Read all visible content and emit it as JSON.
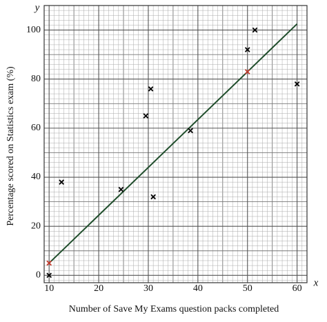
{
  "chart_data": {
    "type": "scatter",
    "x_label": "Number of Save My Exams question packs completed",
    "y_label": "Percentage scored on Statistics exam (%)",
    "x_symbol": "x",
    "y_symbol": "y",
    "xlim": [
      9,
      62
    ],
    "ylim": [
      -3,
      110
    ],
    "xticks": [
      10,
      20,
      30,
      40,
      50,
      60
    ],
    "yticks": [
      0,
      20,
      40,
      60,
      80,
      100
    ],
    "grid": true,
    "series": [
      {
        "type": "scatter",
        "color": "#000000",
        "x": [
          10,
          12.5,
          24.5,
          29.5,
          30.5,
          31,
          38.5,
          50,
          51.5,
          60
        ],
        "values": [
          0,
          38,
          35,
          65,
          76,
          32,
          59,
          92,
          100,
          78
        ]
      },
      {
        "type": "scatter",
        "color": "#c0392b",
        "x": [
          10,
          50
        ],
        "values": [
          5,
          83
        ]
      },
      {
        "type": "line",
        "color": "#1f4d2b",
        "x": [
          10,
          60
        ],
        "values": [
          5,
          102.5
        ]
      }
    ]
  }
}
